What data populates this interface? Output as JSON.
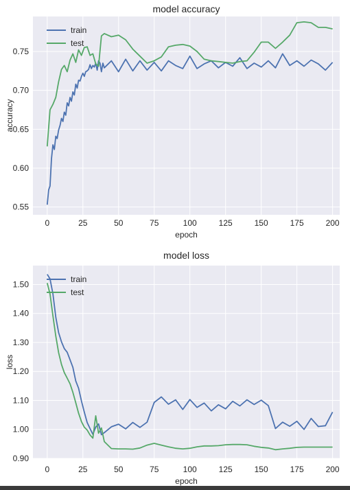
{
  "colors": {
    "train": "#4c72b0",
    "test": "#55a868",
    "panel": "#eaeaf2",
    "grid": "#ffffff"
  },
  "chart_data": [
    {
      "type": "line",
      "title": "model accuracy",
      "xlabel": "epoch",
      "ylabel": "accuracy",
      "xticks": [
        0,
        25,
        50,
        75,
        100,
        125,
        150,
        175,
        200
      ],
      "yticks": [
        0.55,
        0.6,
        0.65,
        0.7,
        0.75
      ],
      "xlim": [
        -10,
        205
      ],
      "ylim": [
        0.54,
        0.795
      ],
      "grid": true,
      "legend_position": "top-left",
      "series": [
        {
          "name": "train",
          "points": [
            [
              0,
              0.553
            ],
            [
              1,
              0.572
            ],
            [
              2,
              0.577
            ],
            [
              3,
              0.612
            ],
            [
              4,
              0.63
            ],
            [
              5,
              0.624
            ],
            [
              6,
              0.641
            ],
            [
              7,
              0.638
            ],
            [
              8,
              0.649
            ],
            [
              9,
              0.655
            ],
            [
              10,
              0.664
            ],
            [
              11,
              0.66
            ],
            [
              12,
              0.672
            ],
            [
              13,
              0.668
            ],
            [
              14,
              0.684
            ],
            [
              15,
              0.68
            ],
            [
              16,
              0.691
            ],
            [
              17,
              0.686
            ],
            [
              18,
              0.698
            ],
            [
              19,
              0.694
            ],
            [
              20,
              0.708
            ],
            [
              21,
              0.703
            ],
            [
              22,
              0.713
            ],
            [
              23,
              0.712
            ],
            [
              24,
              0.718
            ],
            [
              25,
              0.722
            ],
            [
              26,
              0.718
            ],
            [
              27,
              0.724
            ],
            [
              28,
              0.725
            ],
            [
              29,
              0.727
            ],
            [
              30,
              0.733
            ],
            [
              31,
              0.728
            ],
            [
              32,
              0.732
            ],
            [
              33,
              0.73
            ],
            [
              34,
              0.735
            ],
            [
              35,
              0.726
            ],
            [
              36,
              0.738
            ],
            [
              37,
              0.735
            ],
            [
              38,
              0.724
            ],
            [
              39,
              0.735
            ],
            [
              40,
              0.729
            ],
            [
              45,
              0.738
            ],
            [
              50,
              0.724
            ],
            [
              55,
              0.74
            ],
            [
              60,
              0.725
            ],
            [
              65,
              0.738
            ],
            [
              70,
              0.726
            ],
            [
              75,
              0.736
            ],
            [
              80,
              0.725
            ],
            [
              85,
              0.738
            ],
            [
              90,
              0.732
            ],
            [
              95,
              0.728
            ],
            [
              100,
              0.744
            ],
            [
              105,
              0.728
            ],
            [
              110,
              0.734
            ],
            [
              115,
              0.738
            ],
            [
              120,
              0.729
            ],
            [
              125,
              0.736
            ],
            [
              130,
              0.731
            ],
            [
              135,
              0.742
            ],
            [
              140,
              0.728
            ],
            [
              145,
              0.735
            ],
            [
              150,
              0.73
            ],
            [
              155,
              0.738
            ],
            [
              160,
              0.729
            ],
            [
              165,
              0.747
            ],
            [
              170,
              0.732
            ],
            [
              175,
              0.738
            ],
            [
              180,
              0.731
            ],
            [
              185,
              0.739
            ],
            [
              190,
              0.734
            ],
            [
              195,
              0.726
            ],
            [
              200,
              0.736
            ]
          ]
        },
        {
          "name": "test",
          "points": [
            [
              0,
              0.628
            ],
            [
              2,
              0.675
            ],
            [
              4,
              0.682
            ],
            [
              6,
              0.691
            ],
            [
              8,
              0.711
            ],
            [
              10,
              0.727
            ],
            [
              12,
              0.732
            ],
            [
              14,
              0.724
            ],
            [
              16,
              0.739
            ],
            [
              18,
              0.747
            ],
            [
              20,
              0.736
            ],
            [
              22,
              0.752
            ],
            [
              24,
              0.745
            ],
            [
              26,
              0.755
            ],
            [
              28,
              0.756
            ],
            [
              30,
              0.745
            ],
            [
              32,
              0.747
            ],
            [
              34,
              0.734
            ],
            [
              36,
              0.731
            ],
            [
              38,
              0.77
            ],
            [
              40,
              0.773
            ],
            [
              45,
              0.769
            ],
            [
              50,
              0.771
            ],
            [
              55,
              0.765
            ],
            [
              60,
              0.753
            ],
            [
              65,
              0.744
            ],
            [
              70,
              0.735
            ],
            [
              75,
              0.738
            ],
            [
              80,
              0.743
            ],
            [
              85,
              0.756
            ],
            [
              90,
              0.758
            ],
            [
              95,
              0.759
            ],
            [
              100,
              0.757
            ],
            [
              105,
              0.75
            ],
            [
              110,
              0.74
            ],
            [
              115,
              0.738
            ],
            [
              120,
              0.737
            ],
            [
              125,
              0.736
            ],
            [
              130,
              0.735
            ],
            [
              135,
              0.737
            ],
            [
              140,
              0.738
            ],
            [
              145,
              0.749
            ],
            [
              150,
              0.762
            ],
            [
              155,
              0.762
            ],
            [
              160,
              0.754
            ],
            [
              165,
              0.762
            ],
            [
              170,
              0.771
            ],
            [
              175,
              0.787
            ],
            [
              180,
              0.788
            ],
            [
              185,
              0.787
            ],
            [
              190,
              0.781
            ],
            [
              195,
              0.781
            ],
            [
              200,
              0.779
            ]
          ]
        }
      ]
    },
    {
      "type": "line",
      "title": "model loss",
      "xlabel": "epoch",
      "ylabel": "loss",
      "xticks": [
        0,
        25,
        50,
        75,
        100,
        125,
        150,
        175,
        200
      ],
      "yticks": [
        0.9,
        1.0,
        1.1,
        1.2,
        1.3,
        1.4,
        1.5
      ],
      "xlim": [
        -10,
        205
      ],
      "ylim": [
        0.9,
        1.565
      ],
      "grid": true,
      "legend_position": "top-left",
      "series": [
        {
          "name": "train",
          "points": [
            [
              0,
              1.535
            ],
            [
              2,
              1.519
            ],
            [
              4,
              1.468
            ],
            [
              6,
              1.387
            ],
            [
              8,
              1.334
            ],
            [
              10,
              1.302
            ],
            [
              12,
              1.279
            ],
            [
              14,
              1.266
            ],
            [
              16,
              1.24
            ],
            [
              18,
              1.214
            ],
            [
              20,
              1.167
            ],
            [
              22,
              1.142
            ],
            [
              24,
              1.098
            ],
            [
              26,
              1.06
            ],
            [
              28,
              1.024
            ],
            [
              30,
              1.003
            ],
            [
              32,
              0.983
            ],
            [
              34,
              1.008
            ],
            [
              36,
              1.019
            ],
            [
              38,
              0.982
            ],
            [
              40,
              0.989
            ],
            [
              45,
              1.009
            ],
            [
              50,
              1.018
            ],
            [
              55,
              1.002
            ],
            [
              60,
              1.024
            ],
            [
              65,
              1.007
            ],
            [
              70,
              1.025
            ],
            [
              75,
              1.093
            ],
            [
              80,
              1.112
            ],
            [
              85,
              1.087
            ],
            [
              90,
              1.102
            ],
            [
              95,
              1.069
            ],
            [
              100,
              1.103
            ],
            [
              105,
              1.076
            ],
            [
              110,
              1.091
            ],
            [
              115,
              1.064
            ],
            [
              120,
              1.085
            ],
            [
              125,
              1.071
            ],
            [
              130,
              1.097
            ],
            [
              135,
              1.081
            ],
            [
              140,
              1.102
            ],
            [
              145,
              1.086
            ],
            [
              150,
              1.101
            ],
            [
              155,
              1.082
            ],
            [
              160,
              1.003
            ],
            [
              165,
              1.025
            ],
            [
              170,
              1.011
            ],
            [
              175,
              1.028
            ],
            [
              180,
              1.0
            ],
            [
              185,
              1.038
            ],
            [
              190,
              1.01
            ],
            [
              195,
              1.013
            ],
            [
              200,
              1.06
            ]
          ]
        },
        {
          "name": "test",
          "points": [
            [
              0,
              1.505
            ],
            [
              2,
              1.467
            ],
            [
              4,
              1.392
            ],
            [
              6,
              1.322
            ],
            [
              8,
              1.265
            ],
            [
              10,
              1.224
            ],
            [
              12,
              1.196
            ],
            [
              14,
              1.177
            ],
            [
              16,
              1.157
            ],
            [
              18,
              1.128
            ],
            [
              20,
              1.092
            ],
            [
              22,
              1.056
            ],
            [
              24,
              1.027
            ],
            [
              26,
              1.008
            ],
            [
              28,
              0.998
            ],
            [
              30,
              0.981
            ],
            [
              32,
              0.97
            ],
            [
              34,
              1.047
            ],
            [
              36,
              0.987
            ],
            [
              38,
              1.005
            ],
            [
              40,
              0.958
            ],
            [
              45,
              0.934
            ],
            [
              50,
              0.933
            ],
            [
              55,
              0.933
            ],
            [
              60,
              0.932
            ],
            [
              65,
              0.936
            ],
            [
              70,
              0.946
            ],
            [
              75,
              0.952
            ],
            [
              80,
              0.946
            ],
            [
              85,
              0.94
            ],
            [
              90,
              0.935
            ],
            [
              95,
              0.933
            ],
            [
              100,
              0.935
            ],
            [
              105,
              0.94
            ],
            [
              110,
              0.943
            ],
            [
              115,
              0.943
            ],
            [
              120,
              0.944
            ],
            [
              125,
              0.947
            ],
            [
              130,
              0.948
            ],
            [
              135,
              0.948
            ],
            [
              140,
              0.947
            ],
            [
              145,
              0.942
            ],
            [
              150,
              0.938
            ],
            [
              155,
              0.936
            ],
            [
              160,
              0.93
            ],
            [
              165,
              0.933
            ],
            [
              170,
              0.935
            ],
            [
              175,
              0.938
            ],
            [
              180,
              0.939
            ],
            [
              185,
              0.939
            ],
            [
              190,
              0.939
            ],
            [
              195,
              0.939
            ],
            [
              200,
              0.939
            ]
          ]
        }
      ]
    }
  ]
}
